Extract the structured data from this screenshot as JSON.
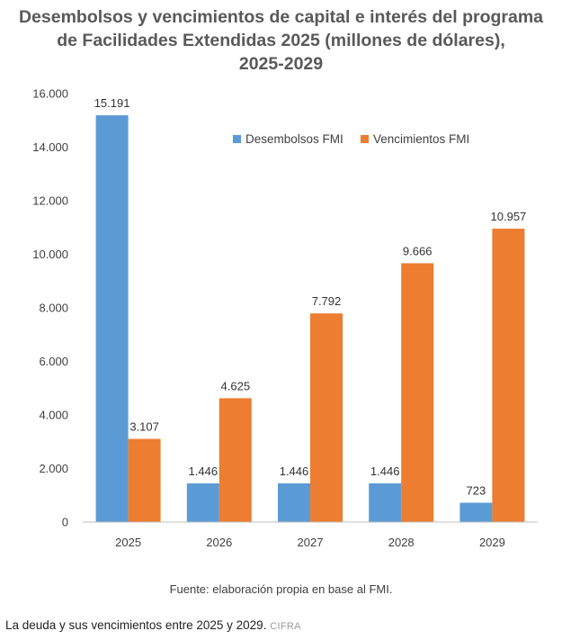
{
  "chart_data": {
    "type": "bar",
    "title_lines": [
      "Desembolsos y vencimientos de capital e interés del programa",
      "de Facilidades Extendidas 2025 (millones de dólares),",
      "2025-2029"
    ],
    "categories": [
      "2025",
      "2026",
      "2027",
      "2028",
      "2029"
    ],
    "series": [
      {
        "name": "Desembolsos FMI",
        "color": "#5B9BD5",
        "values": [
          15191,
          1446,
          1446,
          1446,
          723
        ],
        "labels": [
          "15.191",
          "1.446",
          "1.446",
          "1.446",
          "723"
        ]
      },
      {
        "name": "Vencimientos FMI",
        "color": "#ED7D31",
        "values": [
          3107,
          4625,
          7792,
          9666,
          10957
        ],
        "labels": [
          "3.107",
          "4.625",
          "7.792",
          "9.666",
          "10.957"
        ]
      }
    ],
    "ylim": [
      0,
      16000
    ],
    "yticks": [
      0,
      2000,
      4000,
      6000,
      8000,
      10000,
      12000,
      14000,
      16000
    ],
    "ytick_labels": [
      "0",
      "2.000",
      "4.000",
      "6.000",
      "8.000",
      "10.000",
      "12.000",
      "14.000",
      "16.000"
    ],
    "grid": false,
    "legend_position": "top-right"
  },
  "source_note": "Fuente: elaboración propia en base al FMI.",
  "caption": {
    "text": "La deuda y sus vencimientos entre 2025 y 2029.",
    "credit": "CIFRA"
  }
}
